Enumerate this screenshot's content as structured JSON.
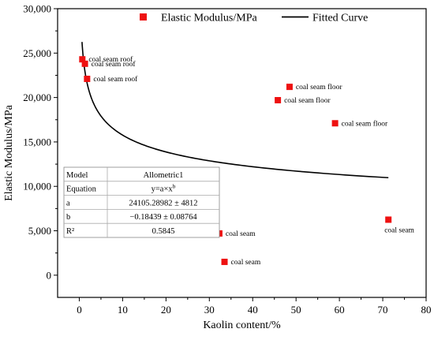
{
  "chart_data": {
    "type": "scatter",
    "xlabel": "Kaolin content/%",
    "ylabel": "Elastic Modulus/MPa",
    "xlim": [
      -5,
      80
    ],
    "ylim": [
      -2500,
      30000
    ],
    "x_ticks": [
      0,
      10,
      20,
      30,
      40,
      50,
      60,
      70,
      80
    ],
    "x_tick_labels": [
      "0",
      "10",
      "20",
      "30",
      "40",
      "50",
      "60",
      "70",
      "80"
    ],
    "y_ticks": [
      0,
      5000,
      10000,
      15000,
      20000,
      25000,
      30000
    ],
    "y_tick_labels": [
      "0",
      "5,000",
      "10,000",
      "15,000",
      "20,000",
      "25,000",
      "30,000"
    ],
    "grid": false,
    "legend": {
      "position": "top",
      "entries": [
        {
          "label": "Elastic Modulus/MPa",
          "kind": "marker",
          "color": "#ee1111"
        },
        {
          "label": "Fitted Curve",
          "kind": "line",
          "color": "#000000"
        }
      ]
    },
    "series": [
      {
        "name": "Elastic Modulus/MPa",
        "marker": "square",
        "color": "#ee1111",
        "points": [
          {
            "x": 0.7,
            "y": 24300,
            "label": "coal seam roof"
          },
          {
            "x": 1.3,
            "y": 23800,
            "label": "coal seam roof"
          },
          {
            "x": 1.8,
            "y": 22100,
            "label": "coal seam roof"
          },
          {
            "x": 48.5,
            "y": 21200,
            "label": "coal seam floor"
          },
          {
            "x": 45.8,
            "y": 19700,
            "label": "coal seam floor"
          },
          {
            "x": 59.0,
            "y": 17100,
            "label": "coal seam floor"
          },
          {
            "x": 32.3,
            "y": 4700,
            "label": "coal seam"
          },
          {
            "x": 33.5,
            "y": 1500,
            "label": "coal seam"
          },
          {
            "x": 71.3,
            "y": 6250,
            "label": "coal seam"
          }
        ]
      },
      {
        "name": "Fitted Curve",
        "type": "line",
        "color": "#000000",
        "model": "allometric",
        "a": 24105.28982,
        "b": -0.18439,
        "x_range": [
          0.63,
          71.3
        ]
      }
    ],
    "fit_table": {
      "rows": [
        {
          "key": "Model",
          "value": "Allometric1"
        },
        {
          "key": "Equation",
          "value": "y=a×x",
          "superscript": "b"
        },
        {
          "key": "a",
          "value": "24105.28982 ± 4812"
        },
        {
          "key": "b",
          "value": "−0.18439 ± 0.08764"
        },
        {
          "key": "R²",
          "value": "0.5845"
        }
      ]
    }
  }
}
